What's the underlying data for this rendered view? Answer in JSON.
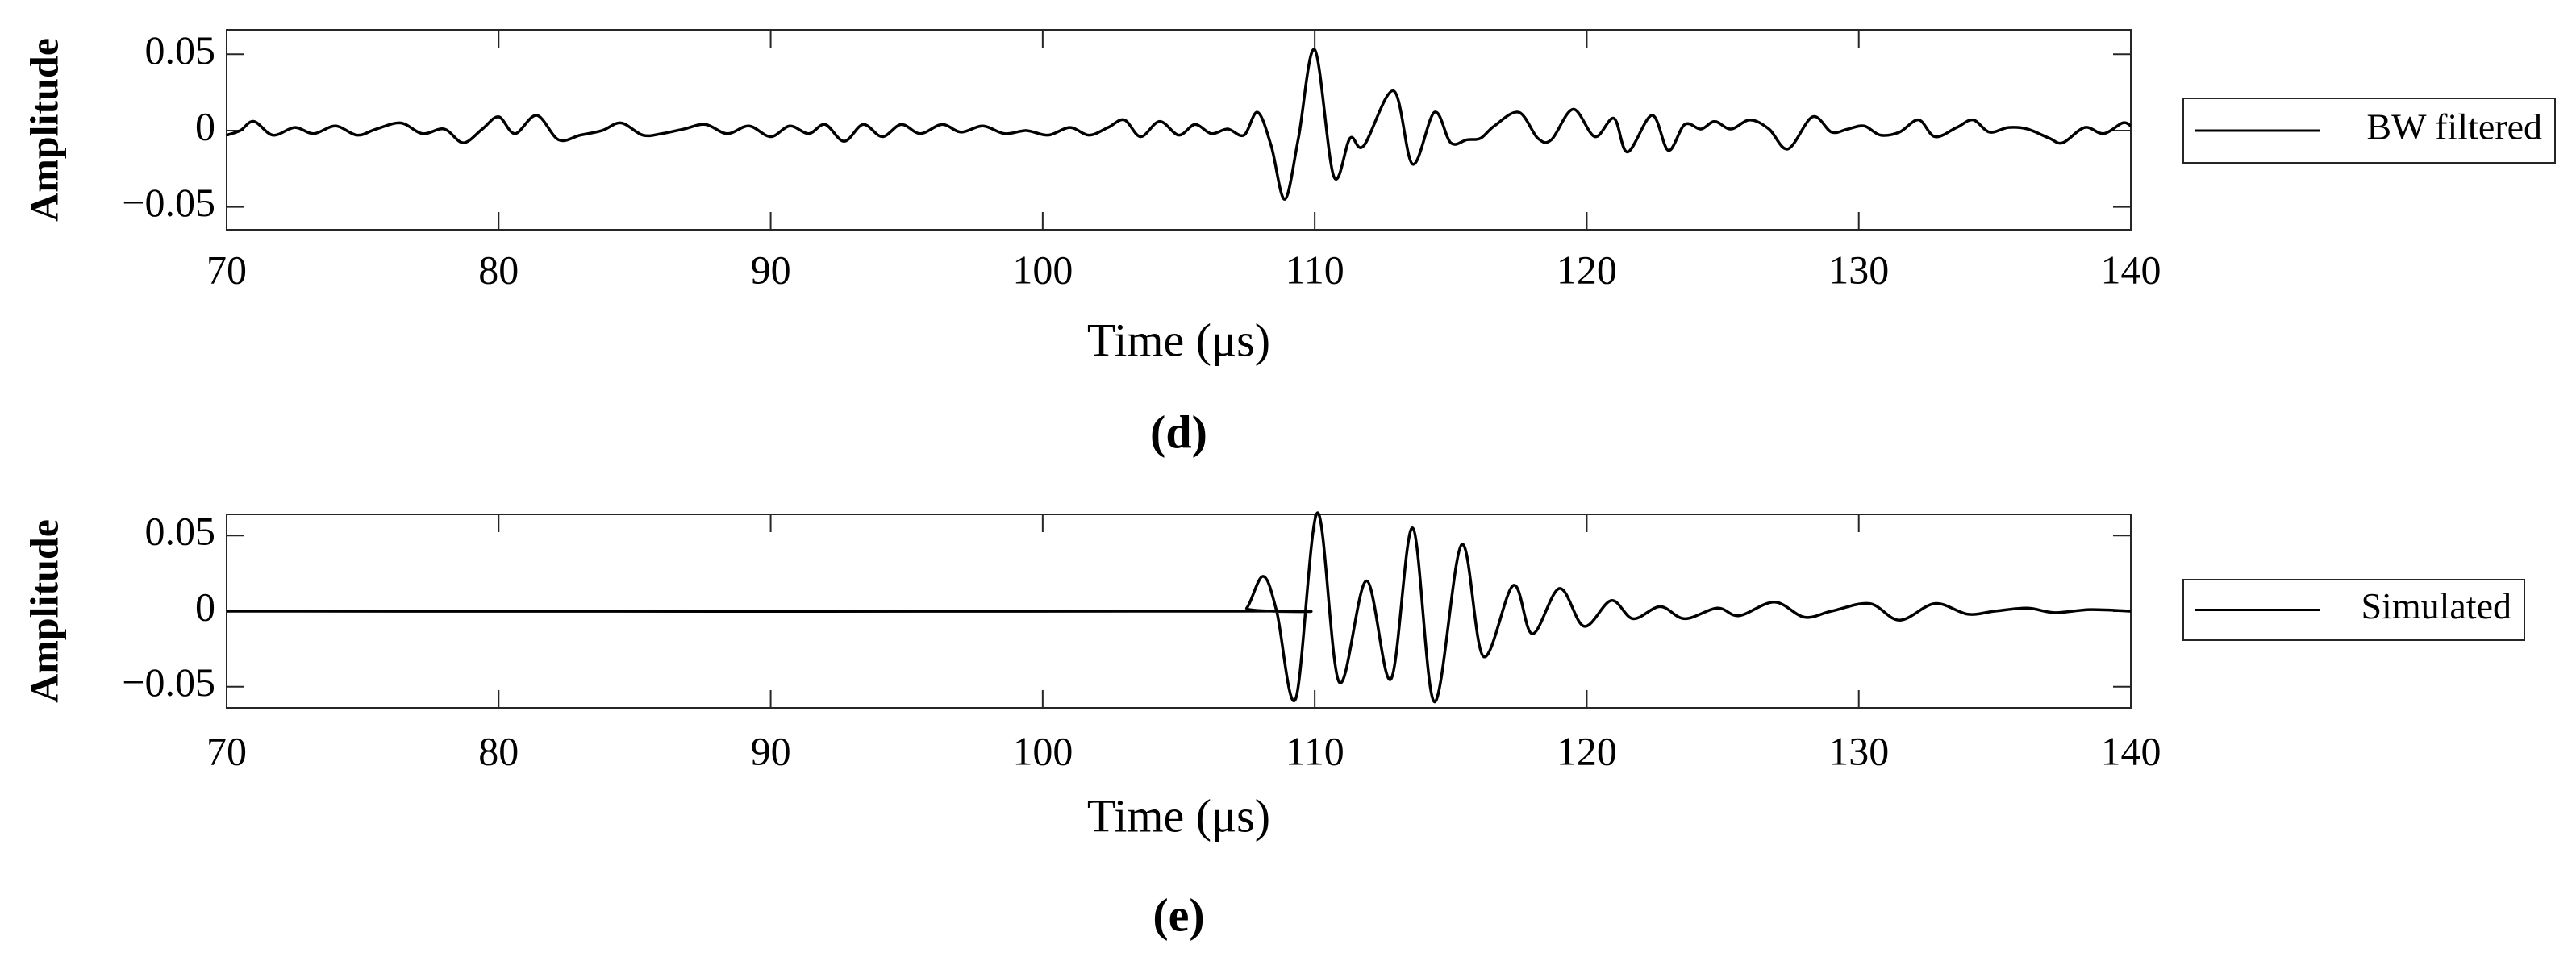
{
  "chart_data": [
    {
      "type": "line",
      "caption": "(d)",
      "xlabel": "Time (μs)",
      "ylabel": "Amplitude",
      "xlim": [
        70,
        140
      ],
      "ylim": [
        -0.065,
        0.066
      ],
      "xticks": [
        70,
        80,
        90,
        100,
        110,
        120,
        130,
        140
      ],
      "yticks": [
        {
          "value": -0.05,
          "label": "−0.05"
        },
        0,
        0.05
      ],
      "x": [
        70,
        70.5,
        71,
        71.7,
        72.5,
        73.2,
        74,
        74.8,
        75.5,
        76.4,
        77.2,
        78,
        78.7,
        79.4,
        80,
        80.6,
        81.4,
        82.2,
        83,
        83.8,
        84.5,
        85.3,
        86,
        86.8,
        87.6,
        88.4,
        89.2,
        90,
        90.7,
        91.4,
        92,
        92.7,
        93.4,
        94.1,
        94.8,
        95.5,
        96.3,
        97,
        97.8,
        98.6,
        99.4,
        100.2,
        101,
        101.7,
        102.4,
        103,
        103.6,
        104.3,
        105,
        105.6,
        106.2,
        106.8,
        107.4,
        107.9,
        108.4,
        108.9,
        109.4,
        110,
        110.7,
        111.3,
        111.8,
        112.9,
        113.6,
        114.4,
        115,
        115.6,
        116.1,
        116.6,
        117.5,
        118.2,
        118.7,
        119.5,
        120.3,
        121,
        121.5,
        122.4,
        123,
        123.6,
        124.2,
        124.7,
        125.3,
        126,
        126.7,
        127.4,
        128.3,
        129,
        129.6,
        130.2,
        130.8,
        131.5,
        132.2,
        132.8,
        133.6,
        134.2,
        134.8,
        135.5,
        136.2,
        137,
        137.5,
        138.3,
        139,
        139.7,
        140
      ],
      "series": [
        {
          "name": "BW filtered",
          "color": "#000000",
          "values": [
            -0.003,
            0,
            0.006,
            -0.003,
            0.002,
            -0.002,
            0.003,
            -0.003,
            0.001,
            0.005,
            -0.002,
            0.001,
            -0.008,
            0.001,
            0.009,
            -0.002,
            0.01,
            -0.006,
            -0.003,
            0,
            0.005,
            -0.003,
            -0.002,
            0.001,
            0.004,
            -0.002,
            0.003,
            -0.004,
            0.003,
            -0.002,
            0.004,
            -0.007,
            0.004,
            -0.004,
            0.004,
            -0.002,
            0.004,
            -0.001,
            0.003,
            -0.002,
            0,
            -0.003,
            0.002,
            -0.003,
            0.002,
            0.007,
            -0.004,
            0.006,
            -0.003,
            0.004,
            -0.002,
            0.001,
            -0.003,
            0.012,
            -0.01,
            -0.045,
            -0.005,
            0.053,
            -0.03,
            -0.005,
            -0.01,
            0.026,
            -0.022,
            0.012,
            -0.008,
            -0.006,
            -0.005,
            0.003,
            0.012,
            -0.005,
            -0.006,
            0.014,
            -0.004,
            0.008,
            -0.014,
            0.01,
            -0.013,
            0.004,
            0.001,
            0.006,
            0.001,
            0.007,
            0.001,
            -0.012,
            0.009,
            -0.001,
            0.001,
            0.003,
            -0.003,
            -0.001,
            0.007,
            -0.004,
            0.002,
            0.007,
            -0.001,
            0.002,
            0.001,
            -0.005,
            -0.008,
            0.002,
            -0.002,
            0.005,
            0.003
          ]
        }
      ]
    },
    {
      "type": "line",
      "caption": "(e)",
      "xlabel": "Time (μs)",
      "ylabel": "Amplitude",
      "xlim": [
        70,
        140
      ],
      "ylim": [
        -0.064,
        0.064
      ],
      "xticks": [
        70,
        80,
        90,
        100,
        110,
        120,
        130,
        140
      ],
      "yticks": [
        {
          "value": -0.05,
          "label": "−0.05"
        },
        0,
        0.05
      ],
      "x": [
        70,
        107,
        107.5,
        108.1,
        108.6,
        109.3,
        110.1,
        110.9,
        111.9,
        112.8,
        113.6,
        114.4,
        115.4,
        116.2,
        117.3,
        118,
        119,
        119.9,
        120.9,
        121.7,
        122.7,
        123.6,
        124.8,
        125.6,
        126.9,
        128,
        129,
        130.4,
        131.5,
        132.8,
        134,
        135,
        136.2,
        137.2,
        138.5,
        140
      ],
      "series": [
        {
          "name": "Simulated",
          "color": "#000000",
          "values": [
            0,
            0,
            0.002,
            0.023,
            0,
            -0.058,
            0.065,
            -0.047,
            0.02,
            -0.045,
            0.055,
            -0.06,
            0.044,
            -0.03,
            0.017,
            -0.015,
            0.015,
            -0.01,
            0.007,
            -0.005,
            0.003,
            -0.005,
            0.002,
            -0.003,
            0.006,
            -0.004,
            0,
            0.005,
            -0.006,
            0.005,
            -0.002,
            0,
            0.002,
            -0.001,
            0.001,
            0
          ]
        }
      ]
    }
  ]
}
